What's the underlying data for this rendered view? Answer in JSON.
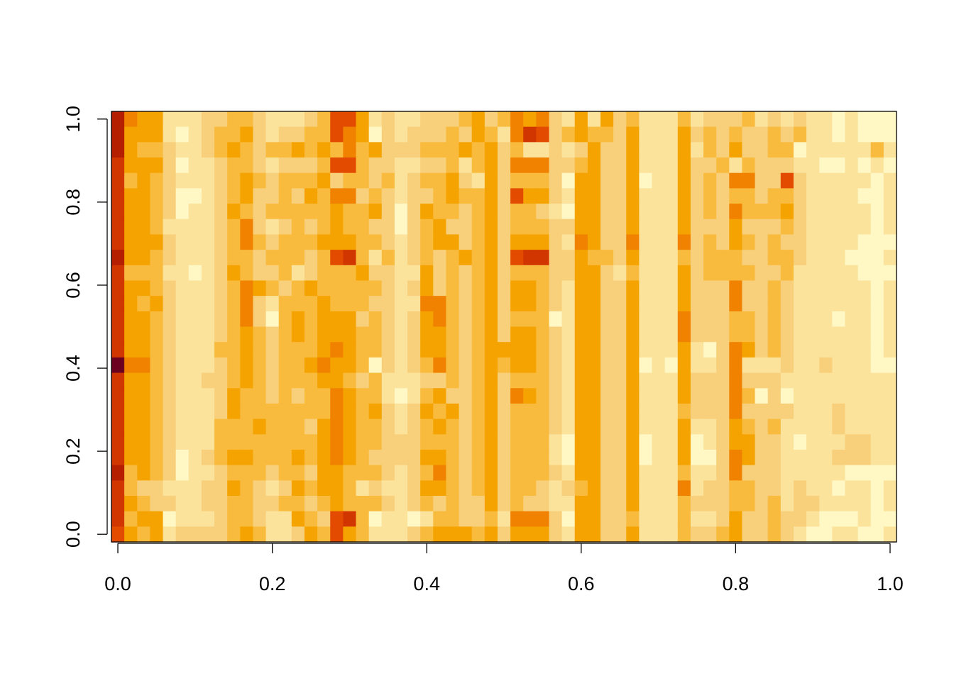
{
  "chart_data": {
    "type": "heatmap",
    "palette": [
      "#6b0021",
      "#b51f00",
      "#d23600",
      "#e24b00",
      "#f08200",
      "#f5a300",
      "#f8bb3e",
      "#f8d07b",
      "#fbe39c",
      "#fff7c4"
    ],
    "xlim": [
      -0.0083,
      1.0083
    ],
    "ylim": [
      -0.0185,
      1.0185
    ],
    "xticks": [
      {
        "value": 0,
        "label": "0.0"
      },
      0.2,
      0.4,
      0.6,
      0.8,
      {
        "value": 1,
        "label": "1.0"
      }
    ],
    "yticks": [
      {
        "value": 0,
        "label": "0.0"
      },
      0.2,
      0.4,
      0.6,
      0.8,
      {
        "value": 1,
        "label": "1.0"
      }
    ],
    "z": [
      [
        1,
        4,
        5,
        5,
        8,
        8,
        8,
        7,
        7,
        6,
        6,
        7,
        8,
        8,
        8,
        7,
        6,
        3,
        3,
        5,
        8,
        7,
        8,
        8,
        7,
        7,
        7,
        6,
        5,
        7,
        6,
        4,
        5,
        4,
        7,
        8,
        5,
        8,
        5,
        7,
        6,
        8,
        8,
        8,
        6,
        8,
        7,
        7,
        7,
        6,
        8,
        7,
        8,
        7,
        8,
        8,
        9,
        8,
        9,
        9,
        9
      ],
      [
        1,
        5,
        5,
        5,
        8,
        9,
        8,
        7,
        6,
        6,
        5,
        7,
        8,
        7,
        7,
        6,
        6,
        3,
        4,
        5,
        9,
        7,
        8,
        7,
        7,
        7,
        6,
        7,
        5,
        6,
        8,
        4,
        2,
        3,
        7,
        6,
        5,
        6,
        6,
        7,
        5,
        8,
        8,
        8,
        5,
        7,
        6,
        7,
        6,
        7,
        7,
        6,
        7,
        6,
        8,
        8,
        9,
        8,
        9,
        9,
        9
      ],
      [
        1,
        5,
        6,
        6,
        7,
        8,
        8,
        7,
        6,
        5,
        6,
        7,
        6,
        6,
        5,
        6,
        5,
        6,
        4,
        6,
        5,
        7,
        7,
        7,
        6,
        6,
        6,
        5,
        6,
        5,
        7,
        6,
        8,
        8,
        7,
        8,
        7,
        5,
        7,
        7,
        5,
        8,
        8,
        8,
        5,
        8,
        6,
        7,
        5,
        7,
        7,
        6,
        6,
        9,
        8,
        8,
        8,
        8,
        8,
        6,
        8
      ],
      [
        2,
        5,
        5,
        5,
        7,
        9,
        8,
        8,
        7,
        6,
        6,
        7,
        8,
        7,
        7,
        7,
        6,
        3,
        3,
        6,
        7,
        7,
        8,
        8,
        7,
        7,
        6,
        8,
        6,
        5,
        7,
        4,
        4,
        4,
        7,
        7,
        6,
        5,
        7,
        7,
        5,
        8,
        8,
        8,
        5,
        7,
        7,
        6,
        8,
        6,
        7,
        7,
        7,
        8,
        8,
        9,
        9,
        8,
        9,
        8,
        9
      ],
      [
        2,
        6,
        5,
        6,
        7,
        8,
        8,
        8,
        7,
        6,
        5,
        6,
        7,
        6,
        6,
        6,
        5,
        7,
        6,
        6,
        7,
        6,
        8,
        7,
        6,
        6,
        5,
        7,
        8,
        5,
        7,
        6,
        6,
        6,
        7,
        9,
        5,
        5,
        7,
        7,
        5,
        9,
        8,
        8,
        5,
        7,
        6,
        7,
        4,
        4,
        7,
        7,
        3,
        7,
        8,
        8,
        8,
        8,
        8,
        9,
        8
      ],
      [
        2,
        5,
        5,
        6,
        7,
        9,
        9,
        8,
        7,
        6,
        5,
        7,
        7,
        6,
        7,
        5,
        6,
        4,
        4,
        7,
        6,
        7,
        8,
        7,
        7,
        6,
        5,
        6,
        6,
        5,
        7,
        3,
        5,
        5,
        7,
        8,
        5,
        5,
        7,
        7,
        5,
        8,
        8,
        8,
        5,
        7,
        6,
        7,
        6,
        6,
        7,
        6,
        6,
        7,
        8,
        8,
        8,
        8,
        9,
        9,
        8
      ],
      [
        2,
        5,
        5,
        6,
        7,
        9,
        8,
        8,
        7,
        5,
        6,
        7,
        6,
        6,
        6,
        6,
        6,
        5,
        6,
        6,
        5,
        7,
        9,
        7,
        5,
        6,
        6,
        7,
        6,
        5,
        7,
        6,
        6,
        7,
        8,
        9,
        5,
        5,
        7,
        7,
        5,
        8,
        8,
        8,
        5,
        7,
        6,
        7,
        4,
        6,
        6,
        6,
        5,
        7,
        8,
        8,
        8,
        8,
        8,
        9,
        8
      ],
      [
        2,
        5,
        5,
        6,
        8,
        8,
        8,
        8,
        7,
        6,
        4,
        7,
        8,
        7,
        6,
        7,
        6,
        5,
        6,
        6,
        7,
        7,
        9,
        7,
        6,
        5,
        7,
        7,
        6,
        5,
        7,
        6,
        6,
        6,
        7,
        7,
        5,
        5,
        7,
        7,
        5,
        8,
        8,
        8,
        5,
        7,
        7,
        7,
        5,
        7,
        7,
        7,
        6,
        7,
        8,
        8,
        8,
        8,
        8,
        9,
        8
      ],
      [
        2,
        5,
        5,
        5,
        7,
        8,
        8,
        8,
        7,
        6,
        4,
        6,
        7,
        6,
        6,
        6,
        5,
        5,
        5,
        6,
        6,
        7,
        8,
        7,
        6,
        5,
        5,
        7,
        6,
        5,
        7,
        5,
        5,
        5,
        7,
        8,
        4,
        5,
        7,
        7,
        4,
        8,
        8,
        8,
        4,
        7,
        6,
        7,
        5,
        6,
        7,
        6,
        7,
        7,
        8,
        8,
        8,
        8,
        9,
        9,
        9
      ],
      [
        1,
        5,
        5,
        6,
        7,
        8,
        8,
        8,
        7,
        6,
        6,
        7,
        6,
        6,
        6,
        7,
        6,
        3,
        2,
        6,
        8,
        6,
        8,
        7,
        6,
        7,
        6,
        5,
        6,
        5,
        7,
        3,
        2,
        2,
        7,
        7,
        5,
        6,
        6,
        7,
        5,
        8,
        8,
        8,
        6,
        7,
        6,
        6,
        6,
        7,
        7,
        6,
        6,
        7,
        8,
        8,
        8,
        9,
        9,
        9,
        8
      ],
      [
        2,
        6,
        6,
        6,
        8,
        8,
        9,
        8,
        7,
        5,
        6,
        7,
        7,
        6,
        8,
        7,
        6,
        6,
        6,
        5,
        7,
        7,
        8,
        8,
        5,
        7,
        6,
        7,
        6,
        5,
        7,
        6,
        6,
        6,
        7,
        7,
        5,
        5,
        7,
        8,
        6,
        8,
        8,
        8,
        5,
        7,
        6,
        6,
        6,
        6,
        7,
        7,
        6,
        8,
        8,
        8,
        8,
        8,
        9,
        9,
        9
      ],
      [
        2,
        5,
        5,
        6,
        7,
        8,
        8,
        8,
        7,
        6,
        4,
        5,
        6,
        7,
        6,
        5,
        6,
        6,
        6,
        6,
        6,
        7,
        8,
        7,
        5,
        7,
        6,
        7,
        6,
        5,
        7,
        5,
        5,
        6,
        7,
        8,
        5,
        5,
        7,
        7,
        5,
        8,
        8,
        8,
        5,
        7,
        7,
        7,
        4,
        7,
        7,
        6,
        7,
        8,
        8,
        8,
        8,
        8,
        8,
        9,
        8
      ],
      [
        2,
        5,
        6,
        5,
        7,
        8,
        8,
        8,
        7,
        6,
        4,
        7,
        8,
        6,
        6,
        6,
        5,
        6,
        6,
        6,
        7,
        7,
        8,
        8,
        4,
        4,
        6,
        7,
        6,
        5,
        7,
        5,
        5,
        6,
        7,
        8,
        5,
        5,
        7,
        7,
        5,
        8,
        8,
        8,
        5,
        7,
        7,
        7,
        4,
        7,
        7,
        6,
        7,
        8,
        8,
        8,
        8,
        8,
        8,
        9,
        8
      ],
      [
        2,
        5,
        5,
        6,
        7,
        8,
        8,
        8,
        7,
        6,
        4,
        7,
        9,
        6,
        5,
        6,
        5,
        5,
        5,
        7,
        6,
        7,
        8,
        7,
        5,
        4,
        6,
        7,
        6,
        5,
        7,
        6,
        6,
        6,
        9,
        8,
        5,
        5,
        7,
        7,
        5,
        8,
        8,
        8,
        4,
        7,
        7,
        7,
        6,
        6,
        7,
        6,
        7,
        8,
        8,
        8,
        9,
        8,
        8,
        9,
        8
      ],
      [
        2,
        5,
        5,
        6,
        7,
        8,
        8,
        8,
        7,
        6,
        5,
        6,
        7,
        6,
        5,
        6,
        5,
        5,
        5,
        6,
        6,
        7,
        8,
        7,
        5,
        5,
        6,
        7,
        6,
        5,
        7,
        5,
        5,
        6,
        7,
        8,
        5,
        5,
        7,
        7,
        5,
        8,
        8,
        8,
        4,
        7,
        7,
        7,
        6,
        6,
        7,
        6,
        7,
        8,
        8,
        8,
        8,
        8,
        8,
        9,
        8
      ],
      [
        2,
        5,
        5,
        6,
        7,
        8,
        8,
        8,
        6,
        6,
        5,
        6,
        7,
        6,
        6,
        6,
        5,
        4,
        5,
        6,
        6,
        7,
        8,
        7,
        5,
        5,
        6,
        7,
        6,
        5,
        5,
        5,
        5,
        6,
        7,
        8,
        5,
        5,
        7,
        7,
        5,
        8,
        8,
        8,
        5,
        8,
        9,
        7,
        4,
        5,
        7,
        6,
        7,
        8,
        8,
        8,
        8,
        8,
        8,
        9,
        8
      ],
      [
        0,
        4,
        4,
        6,
        7,
        8,
        8,
        8,
        7,
        6,
        5,
        6,
        7,
        6,
        6,
        5,
        4,
        5,
        5,
        6,
        9,
        7,
        8,
        7,
        6,
        4,
        6,
        7,
        6,
        5,
        6,
        5,
        5,
        6,
        7,
        8,
        5,
        5,
        7,
        7,
        5,
        9,
        8,
        9,
        5,
        8,
        8,
        7,
        4,
        8,
        8,
        8,
        7,
        8,
        8,
        7,
        8,
        8,
        8,
        9,
        9
      ],
      [
        2,
        5,
        5,
        6,
        7,
        8,
        8,
        7,
        7,
        6,
        5,
        6,
        7,
        6,
        6,
        6,
        5,
        5,
        6,
        7,
        6,
        8,
        8,
        8,
        7,
        7,
        6,
        7,
        6,
        5,
        7,
        6,
        6,
        6,
        7,
        8,
        5,
        5,
        7,
        7,
        5,
        8,
        8,
        8,
        5,
        7,
        7,
        7,
        4,
        7,
        7,
        7,
        8,
        8,
        8,
        8,
        8,
        8,
        8,
        8,
        8
      ],
      [
        2,
        5,
        5,
        6,
        7,
        8,
        8,
        8,
        7,
        5,
        6,
        6,
        7,
        6,
        7,
        6,
        6,
        4,
        5,
        6,
        6,
        8,
        9,
        8,
        6,
        5,
        7,
        7,
        6,
        5,
        7,
        4,
        5,
        6,
        7,
        8,
        5,
        5,
        7,
        7,
        5,
        8,
        8,
        8,
        5,
        7,
        7,
        7,
        4,
        6,
        9,
        7,
        9,
        8,
        8,
        8,
        8,
        8,
        8,
        8,
        8
      ],
      [
        2,
        5,
        5,
        6,
        7,
        8,
        8,
        8,
        7,
        5,
        6,
        6,
        6,
        6,
        6,
        6,
        6,
        4,
        5,
        6,
        5,
        7,
        8,
        7,
        5,
        6,
        5,
        7,
        6,
        5,
        7,
        6,
        6,
        6,
        7,
        8,
        5,
        5,
        7,
        7,
        5,
        8,
        8,
        8,
        6,
        7,
        7,
        7,
        4,
        7,
        7,
        7,
        7,
        8,
        8,
        8,
        7,
        8,
        8,
        8,
        8
      ],
      [
        2,
        5,
        5,
        6,
        7,
        8,
        8,
        8,
        6,
        6,
        6,
        5,
        6,
        6,
        6,
        7,
        5,
        4,
        5,
        6,
        6,
        7,
        8,
        7,
        6,
        5,
        6,
        7,
        6,
        5,
        7,
        6,
        6,
        6,
        7,
        8,
        5,
        5,
        7,
        7,
        5,
        8,
        8,
        8,
        5,
        8,
        8,
        7,
        5,
        6,
        7,
        6,
        8,
        8,
        8,
        8,
        7,
        8,
        8,
        8,
        8
      ],
      [
        2,
        5,
        5,
        6,
        7,
        8,
        8,
        8,
        6,
        6,
        6,
        6,
        6,
        6,
        6,
        6,
        5,
        4,
        5,
        6,
        6,
        7,
        7,
        7,
        6,
        6,
        6,
        7,
        6,
        5,
        7,
        6,
        6,
        6,
        8,
        9,
        5,
        5,
        7,
        7,
        5,
        9,
        8,
        8,
        5,
        9,
        8,
        7,
        5,
        5,
        7,
        7,
        8,
        9,
        8,
        8,
        8,
        7,
        7,
        8,
        8
      ],
      [
        2,
        5,
        5,
        6,
        7,
        9,
        8,
        7,
        6,
        5,
        5,
        6,
        6,
        6,
        5,
        6,
        5,
        4,
        5,
        6,
        7,
        7,
        7,
        7,
        5,
        5,
        6,
        7,
        6,
        5,
        7,
        6,
        6,
        6,
        8,
        9,
        5,
        5,
        7,
        7,
        5,
        9,
        8,
        8,
        5,
        9,
        9,
        7,
        4,
        5,
        7,
        7,
        8,
        8,
        8,
        8,
        7,
        7,
        7,
        8,
        8
      ],
      [
        1,
        6,
        5,
        6,
        7,
        9,
        8,
        8,
        7,
        6,
        6,
        6,
        7,
        6,
        6,
        7,
        5,
        5,
        6,
        6,
        6,
        7,
        8,
        7,
        6,
        4,
        6,
        7,
        6,
        5,
        7,
        6,
        6,
        6,
        7,
        8,
        5,
        5,
        7,
        7,
        5,
        8,
        8,
        8,
        6,
        8,
        8,
        7,
        4,
        7,
        7,
        7,
        8,
        8,
        8,
        8,
        8,
        9,
        9,
        9,
        9
      ],
      [
        2,
        6,
        7,
        7,
        8,
        8,
        8,
        7,
        7,
        5,
        6,
        7,
        8,
        7,
        5,
        6,
        5,
        5,
        6,
        8,
        7,
        8,
        8,
        7,
        5,
        5,
        6,
        7,
        6,
        5,
        7,
        6,
        6,
        7,
        8,
        7,
        6,
        5,
        7,
        7,
        5,
        8,
        8,
        8,
        4,
        8,
        7,
        7,
        6,
        6,
        7,
        7,
        8,
        7,
        8,
        8,
        9,
        8,
        8,
        9,
        8
      ],
      [
        2,
        5,
        6,
        7,
        7,
        8,
        8,
        7,
        7,
        6,
        6,
        7,
        7,
        6,
        6,
        7,
        6,
        5,
        6,
        6,
        6,
        7,
        8,
        7,
        6,
        7,
        6,
        7,
        7,
        5,
        7,
        6,
        7,
        7,
        8,
        8,
        5,
        5,
        7,
        7,
        5,
        8,
        8,
        8,
        6,
        7,
        7,
        7,
        6,
        6,
        7,
        6,
        8,
        7,
        7,
        8,
        8,
        8,
        8,
        9,
        8
      ],
      [
        2,
        6,
        5,
        5,
        9,
        8,
        8,
        8,
        7,
        6,
        6,
        7,
        8,
        8,
        5,
        6,
        7,
        3,
        2,
        6,
        9,
        8,
        8,
        9,
        8,
        6,
        6,
        7,
        7,
        6,
        8,
        4,
        4,
        4,
        7,
        9,
        5,
        5,
        7,
        7,
        6,
        8,
        8,
        8,
        6,
        8,
        8,
        7,
        5,
        7,
        7,
        6,
        7,
        7,
        8,
        9,
        9,
        9,
        8,
        9,
        9
      ],
      [
        3,
        5,
        6,
        5,
        8,
        7,
        7,
        7,
        7,
        6,
        5,
        6,
        8,
        8,
        7,
        5,
        6,
        3,
        5,
        6,
        8,
        8,
        8,
        7,
        6,
        5,
        5,
        5,
        6,
        5,
        7,
        5,
        5,
        5,
        7,
        8,
        5,
        5,
        7,
        7,
        5,
        8,
        8,
        8,
        6,
        7,
        7,
        6,
        5,
        7,
        7,
        6,
        7,
        8,
        9,
        9,
        8,
        8,
        9,
        9,
        8
      ]
    ]
  }
}
